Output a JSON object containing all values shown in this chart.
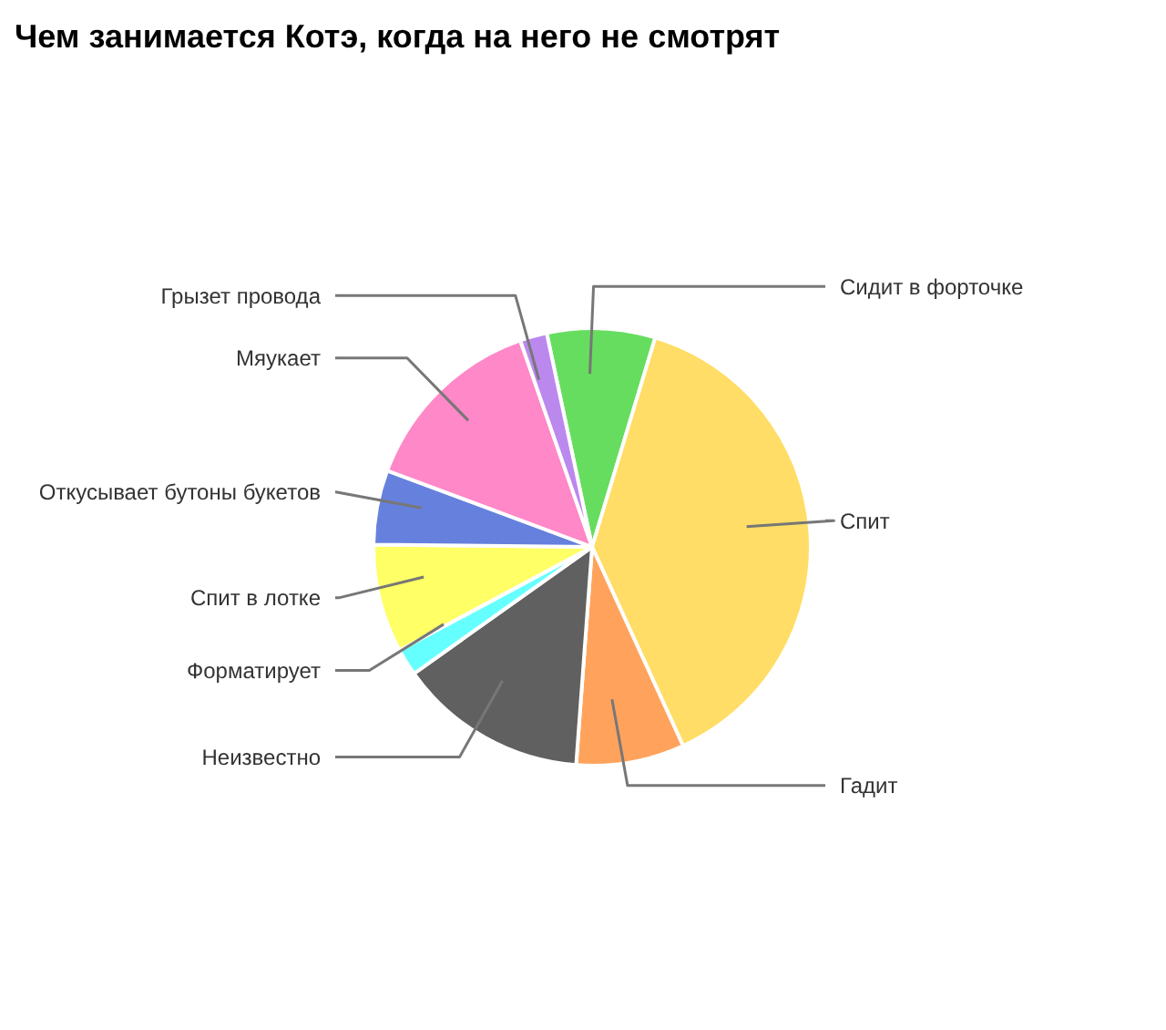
{
  "chart_data": {
    "type": "pie",
    "title": "Чем занимается Котэ, когда на него не смотрят",
    "categories": [
      "Сидит в форточке",
      "Спит",
      "Гадит",
      "Неизвестно",
      "Форматирует",
      "Спит в лотке",
      "Откусывает бутоны букетов",
      "Мяукает",
      "Грызет провода"
    ],
    "values": [
      8,
      38.5,
      8,
      14,
      2,
      8,
      5.5,
      14,
      2
    ],
    "colors": [
      "#66dd5f",
      "#ffdd66",
      "#ffa35c",
      "#606060",
      "#66ffff",
      "#ffff66",
      "#6680dd",
      "#ff88c8",
      "#bb88ee"
    ]
  }
}
